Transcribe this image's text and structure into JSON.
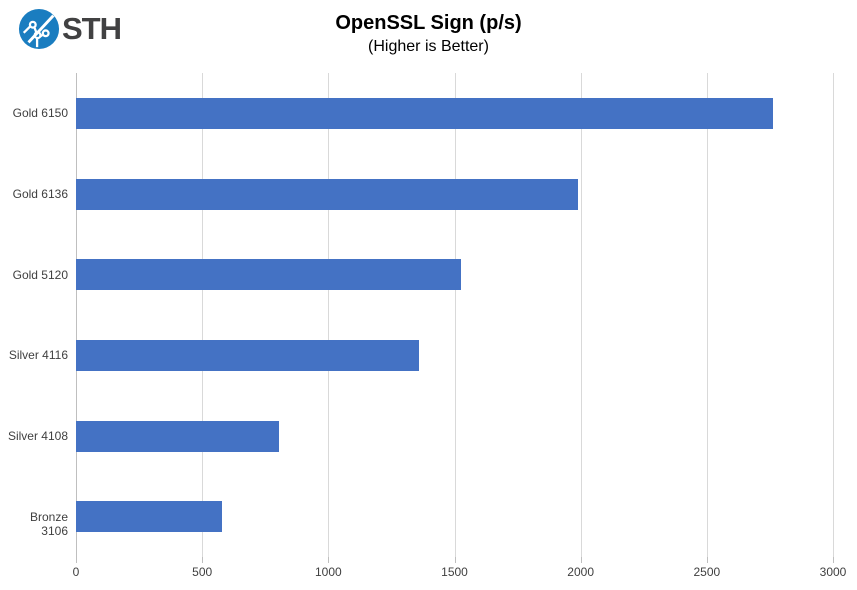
{
  "logo": {
    "text": "STH",
    "circle_color": "#1a7dc0",
    "trace_color": "#ffffff",
    "text_color": "#414142"
  },
  "title": {
    "main": "OpenSSL Sign (p/s)",
    "sub": "(Higher is Better)"
  },
  "chart_data": {
    "type": "bar",
    "orientation": "horizontal",
    "title": "OpenSSL Sign (p/s)",
    "subtitle": "(Higher is Better)",
    "categories": [
      "Gold 6150",
      "Gold 6136",
      "Gold 5120",
      "Silver 4116",
      "Silver 4108",
      "Bronze 3106"
    ],
    "values": [
      2763,
      1990,
      1525,
      1360,
      805,
      580
    ],
    "xlabel": "",
    "ylabel": "",
    "xlim": [
      0,
      3000
    ],
    "x_ticks": [
      0,
      500,
      1000,
      1500,
      2000,
      2500,
      3000
    ],
    "grid": true,
    "legend": false,
    "bar_color": "#4472C4",
    "gridline_color": "#d9d9d9",
    "axis_line_color": "#bfbfbf",
    "label_color": "#404040"
  }
}
